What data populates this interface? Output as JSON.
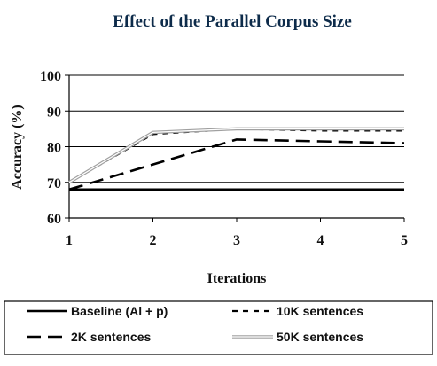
{
  "chart_data": {
    "type": "line",
    "title": "Effect of the Parallel Corpus Size",
    "xlabel": "Iterations",
    "ylabel": "Accuracy (%)",
    "x": [
      1,
      2,
      3,
      4,
      5
    ],
    "xlim": [
      1,
      5
    ],
    "ylim": [
      60,
      100
    ],
    "x_ticks": [
      "1",
      "2",
      "3",
      "4",
      "5"
    ],
    "y_ticks": [
      "60",
      "70",
      "80",
      "90",
      "100"
    ],
    "grid": "horizontal",
    "legend_position": "bottom",
    "series": [
      {
        "name": "Baseline (Al + p)",
        "values": [
          68,
          68,
          68,
          68,
          68
        ],
        "color": "#000000",
        "style": "solid"
      },
      {
        "name": "10K sentences",
        "values": [
          70,
          83.5,
          85,
          84.5,
          84.5
        ],
        "color": "#000000",
        "style": "dotted"
      },
      {
        "name": "2K sentences",
        "values": [
          68,
          75,
          82,
          81.5,
          81
        ],
        "color": "#000000",
        "style": "dashed"
      },
      {
        "name": "50K sentences",
        "values": [
          70,
          84,
          85,
          85,
          85
        ],
        "color": "#a0a0a0",
        "style": "double"
      }
    ]
  }
}
